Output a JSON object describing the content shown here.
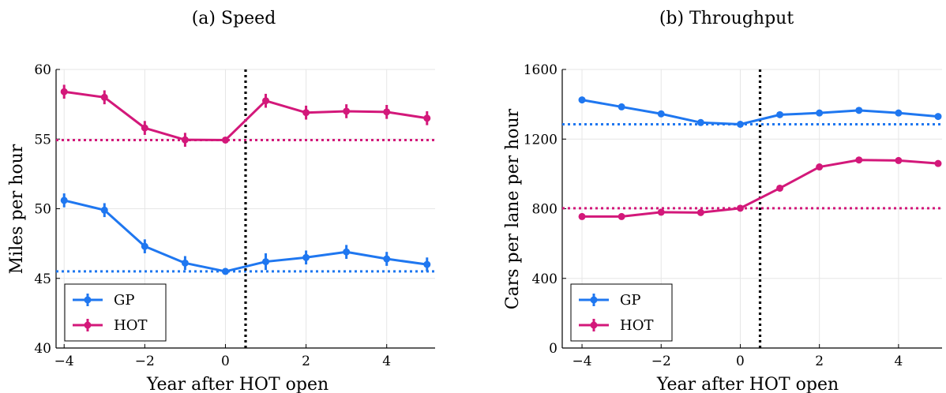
{
  "chart_data": [
    {
      "type": "line",
      "title": "(a) Speed",
      "xlabel": "Year after HOT open",
      "ylabel": "Miles per hour",
      "xlim": [
        -4.2,
        5.2
      ],
      "ylim": [
        40,
        60
      ],
      "xticks": [
        -4,
        -2,
        0,
        2,
        4
      ],
      "xtick_labels": [
        "−4",
        "−2",
        "0",
        "2",
        "4"
      ],
      "yticks": [
        40,
        45,
        50,
        55,
        60
      ],
      "ytick_labels": [
        "40",
        "45",
        "50",
        "55",
        "60"
      ],
      "grid": true,
      "legend_position": "bottom-left",
      "vline_x": 0.5,
      "x": [
        -4,
        -3,
        -2,
        -1,
        0,
        1,
        2,
        3,
        4,
        5
      ],
      "series": [
        {
          "name": "GP",
          "color": "#1f77f0",
          "values": [
            50.6,
            49.9,
            47.3,
            46.1,
            45.5,
            46.2,
            46.5,
            46.9,
            46.4,
            46.0
          ],
          "err": [
            0.5,
            0.5,
            0.5,
            0.5,
            0.0,
            0.6,
            0.5,
            0.5,
            0.5,
            0.5
          ],
          "baseline": 45.5
        },
        {
          "name": "HOT",
          "color": "#d3187a",
          "values": [
            58.4,
            58.0,
            55.8,
            54.95,
            54.93,
            57.75,
            56.9,
            57.0,
            56.95,
            56.5
          ],
          "err": [
            0.5,
            0.5,
            0.5,
            0.5,
            0.0,
            0.5,
            0.5,
            0.5,
            0.5,
            0.5
          ],
          "baseline": 54.93
        }
      ]
    },
    {
      "type": "line",
      "title": "(b) Throughput",
      "xlabel": "Year after HOT open",
      "ylabel": "Cars per lane per hour",
      "xlim": [
        -4.5,
        5.1
      ],
      "ylim": [
        0,
        1600
      ],
      "xticks": [
        -4,
        -2,
        0,
        2,
        4
      ],
      "xtick_labels": [
        "−4",
        "−2",
        "0",
        "2",
        "4"
      ],
      "yticks": [
        0,
        400,
        800,
        1200,
        1600
      ],
      "ytick_labels": [
        "0",
        "400",
        "800",
        "1200",
        "1600"
      ],
      "grid": true,
      "legend_position": "bottom-left",
      "vline_x": 0.5,
      "x": [
        -4,
        -3,
        -2,
        -1,
        0,
        1,
        2,
        3,
        4,
        5
      ],
      "series": [
        {
          "name": "GP",
          "color": "#1f77f0",
          "values": [
            1425,
            1385,
            1345,
            1295,
            1285,
            1340,
            1350,
            1365,
            1350,
            1330
          ],
          "err": [
            8,
            8,
            8,
            8,
            0,
            8,
            8,
            8,
            8,
            8
          ],
          "baseline": 1285
        },
        {
          "name": "HOT",
          "color": "#d3187a",
          "values": [
            755,
            755,
            780,
            778,
            803,
            918,
            1040,
            1080,
            1077,
            1060
          ],
          "err": [
            8,
            8,
            8,
            8,
            0,
            8,
            8,
            8,
            8,
            8
          ],
          "baseline": 803
        }
      ]
    }
  ]
}
